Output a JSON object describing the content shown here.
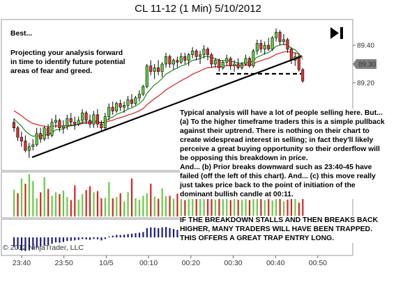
{
  "title": "CL 11-12 (1 Min)  5/10/2012",
  "annotations": {
    "best_label": "Best...",
    "intro": "Projecting your analysis forward in time to identify future potential areas of fear and greed.",
    "analysis": [
      "Typical analysis will have a lot of people selling here. But... (a) To the higher timeframe traders this is a simple pullback against their uptrend. There is nothing on their chart to create widespread interest in selling; in fact they'll likely perceive a great buying opportunity so their orderflow will be opposing this breakdown in price.",
      "And... (b) Prior breaks downward such as 23:40-45 have failed (off the left of this chart). And... (c) this move really just takes price back to the point of initiation of the dominant bullish candle at 00:11."
    ],
    "caps": "IF THE BREAKDOWN STALLS AND THEN BREAKS BACK HIGHER, MANY TRADERS WILL HAVE BEEN TRAPPED. THIS OFFERS A GREAT TRAP ENTRY LONG."
  },
  "copyright": "© 2012 NinjaTrader, LLC",
  "icons": {
    "play": "skip-forward-icon"
  },
  "colors": {
    "up_candle": "#5dcc3d",
    "down_candle": "#e53030",
    "volume_up": "#66cc44",
    "volume_down": "#dd2222",
    "ema_fast": "#228822",
    "ema_slow": "#cc2222",
    "histogram": "#1a1a80",
    "price_marker": "#808080"
  },
  "chart_data": {
    "type": "candlestick",
    "title": "CL 11-12 (1 Min)  5/10/2012",
    "x_tick_labels": [
      "23:40",
      "23:50",
      "10/5",
      "00:10",
      "00:20",
      "00:30",
      "00:40",
      "00:50"
    ],
    "y_tick_labels": [
      "89.40",
      "89.20"
    ],
    "y_ticks": [
      89.4,
      89.2
    ],
    "ylim": [
      88.74,
      89.53
    ],
    "last_price": {
      "label": "89.30",
      "value": 89.3
    },
    "grid": false,
    "candles": [
      [
        88.99,
        89.01,
        88.94,
        88.96
      ],
      [
        88.96,
        88.97,
        88.89,
        88.91
      ],
      [
        88.91,
        88.94,
        88.86,
        88.89
      ],
      [
        88.89,
        88.92,
        88.83,
        88.84
      ],
      [
        88.84,
        88.88,
        88.8,
        88.86
      ],
      [
        88.86,
        88.9,
        88.84,
        88.87
      ],
      [
        88.87,
        88.96,
        88.86,
        88.93
      ],
      [
        88.93,
        88.96,
        88.88,
        88.9
      ],
      [
        88.9,
        88.97,
        88.89,
        88.96
      ],
      [
        88.96,
        88.98,
        88.9,
        88.92
      ],
      [
        88.92,
        89.01,
        88.91,
        88.99
      ],
      [
        88.99,
        89.03,
        88.96,
        89.0
      ],
      [
        89.0,
        89.01,
        88.94,
        88.96
      ],
      [
        88.96,
        89.0,
        88.93,
        88.97
      ],
      [
        88.97,
        89.03,
        88.95,
        89.01
      ],
      [
        89.01,
        89.04,
        88.97,
        88.99
      ],
      [
        88.99,
        89.02,
        88.95,
        88.98
      ],
      [
        88.98,
        89.02,
        88.97,
        89.0
      ],
      [
        89.0,
        89.06,
        88.98,
        89.04
      ],
      [
        89.04,
        89.05,
        88.98,
        89.0
      ],
      [
        89.0,
        89.03,
        88.96,
        88.98
      ],
      [
        88.98,
        89.05,
        88.96,
        89.03
      ],
      [
        89.03,
        89.06,
        88.96,
        88.98
      ],
      [
        88.98,
        89.0,
        88.94,
        88.96
      ],
      [
        88.96,
        89.04,
        88.95,
        89.02
      ],
      [
        89.02,
        89.09,
        89.0,
        89.07
      ],
      [
        89.07,
        89.1,
        89.03,
        89.05
      ],
      [
        89.05,
        89.1,
        89.04,
        89.09
      ],
      [
        89.09,
        89.11,
        89.05,
        89.07
      ],
      [
        89.07,
        89.1,
        89.04,
        89.08
      ],
      [
        89.08,
        89.13,
        89.06,
        89.11
      ],
      [
        89.11,
        89.14,
        89.07,
        89.09
      ],
      [
        89.09,
        89.13,
        89.08,
        89.12
      ],
      [
        89.12,
        89.16,
        89.1,
        89.14
      ],
      [
        89.14,
        89.19,
        89.13,
        89.18
      ],
      [
        89.18,
        89.3,
        89.17,
        89.29
      ],
      [
        89.29,
        89.32,
        89.24,
        89.26
      ],
      [
        89.26,
        89.3,
        89.22,
        89.28
      ],
      [
        89.28,
        89.32,
        89.24,
        89.26
      ],
      [
        89.26,
        89.31,
        89.23,
        89.3
      ],
      [
        89.3,
        89.36,
        89.28,
        89.34
      ],
      [
        89.34,
        89.35,
        89.28,
        89.3
      ],
      [
        89.3,
        89.33,
        89.27,
        89.32
      ],
      [
        89.32,
        89.34,
        89.28,
        89.31
      ],
      [
        89.31,
        89.36,
        89.3,
        89.34
      ],
      [
        89.34,
        89.36,
        89.3,
        89.32
      ],
      [
        89.32,
        89.36,
        89.29,
        89.35
      ],
      [
        89.35,
        89.39,
        89.33,
        89.37
      ],
      [
        89.37,
        89.38,
        89.32,
        89.34
      ],
      [
        89.34,
        89.37,
        89.3,
        89.35
      ],
      [
        89.35,
        89.4,
        89.33,
        89.38
      ],
      [
        89.38,
        89.39,
        89.32,
        89.35
      ],
      [
        89.35,
        89.36,
        89.28,
        89.3
      ],
      [
        89.3,
        89.33,
        89.28,
        89.32
      ],
      [
        89.32,
        89.33,
        89.26,
        89.28
      ],
      [
        89.28,
        89.32,
        89.27,
        89.31
      ],
      [
        89.31,
        89.35,
        89.29,
        89.33
      ],
      [
        89.33,
        89.34,
        89.27,
        89.29
      ],
      [
        89.29,
        89.32,
        89.26,
        89.3
      ],
      [
        89.3,
        89.33,
        89.27,
        89.28
      ],
      [
        89.28,
        89.31,
        89.27,
        89.3
      ],
      [
        89.3,
        89.35,
        89.29,
        89.33
      ],
      [
        89.33,
        89.34,
        89.28,
        89.29
      ],
      [
        89.29,
        89.38,
        89.28,
        89.37
      ],
      [
        89.37,
        89.43,
        89.35,
        89.41
      ],
      [
        89.41,
        89.43,
        89.36,
        89.38
      ],
      [
        89.38,
        89.42,
        89.35,
        89.4
      ],
      [
        89.4,
        89.44,
        89.37,
        89.38
      ],
      [
        89.38,
        89.45,
        89.37,
        89.44
      ],
      [
        89.44,
        89.49,
        89.42,
        89.47
      ],
      [
        89.47,
        89.48,
        89.4,
        89.42
      ],
      [
        89.42,
        89.46,
        89.4,
        89.43
      ],
      [
        89.43,
        89.44,
        89.36,
        89.38
      ],
      [
        89.38,
        89.39,
        89.3,
        89.32
      ],
      [
        89.32,
        89.36,
        89.29,
        89.34
      ],
      [
        89.34,
        89.35,
        89.26,
        89.27
      ],
      [
        89.27,
        89.28,
        89.2,
        89.21
      ]
    ],
    "volume_up": [
      true,
      false,
      true,
      false,
      true,
      true,
      true,
      false,
      true,
      false,
      true,
      true,
      false,
      true,
      true,
      false,
      false,
      true,
      true,
      false,
      false,
      true,
      false,
      false,
      true,
      true,
      false,
      true,
      false,
      true,
      true,
      false,
      true,
      true,
      true,
      true,
      false,
      true,
      false,
      true,
      true,
      false,
      true,
      false,
      true,
      false,
      true,
      true,
      false,
      true,
      true,
      false,
      false,
      true,
      false,
      true,
      true,
      false,
      true,
      false,
      true,
      true,
      false,
      true,
      true,
      false,
      true,
      false,
      true,
      true,
      false,
      true,
      false,
      false,
      true,
      false,
      false
    ],
    "volume": [
      620,
      540,
      880,
      760,
      980,
      820,
      420,
      560,
      910,
      640,
      480,
      560,
      520,
      600,
      450,
      380,
      720,
      390,
      520,
      610,
      700,
      560,
      590,
      420,
      430,
      800,
      420,
      450,
      540,
      350,
      570,
      880,
      420,
      390,
      480,
      540,
      760,
      460,
      410,
      650,
      470,
      480,
      410,
      530,
      500,
      380,
      440,
      570,
      520,
      610,
      420,
      460,
      520,
      390,
      840,
      400,
      930,
      380,
      470,
      390,
      380,
      400,
      380,
      420,
      470,
      920,
      380,
      520,
      370,
      620,
      500,
      350,
      390,
      860,
      560,
      320,
      430
    ],
    "histogram": [
      -0.55,
      -0.7,
      -0.8,
      -0.82,
      -0.78,
      -0.7,
      -0.62,
      -0.55,
      -0.5,
      -0.45,
      -0.38,
      -0.3,
      -0.32,
      -0.28,
      -0.22,
      -0.2,
      -0.18,
      -0.15,
      -0.1,
      -0.12,
      -0.15,
      -0.1,
      -0.12,
      -0.18,
      -0.1,
      0.05,
      0.1,
      0.15,
      0.14,
      0.16,
      0.2,
      0.22,
      0.25,
      0.28,
      0.32,
      0.55,
      0.6,
      0.58,
      0.55,
      0.6,
      0.62,
      0.56,
      0.5,
      0.45,
      0.42,
      0.38,
      0.36,
      0.35,
      0.3,
      0.28,
      0.3,
      0.25,
      0.18,
      0.12,
      0.08,
      0.05,
      0.0,
      -0.05,
      -0.08,
      -0.1,
      -0.1,
      -0.08,
      -0.1,
      0.05,
      0.2,
      0.25,
      0.3,
      0.3,
      0.35,
      0.42,
      0.38,
      0.35,
      0.28,
      0.15,
      0.1,
      -0.05,
      -0.2
    ]
  }
}
